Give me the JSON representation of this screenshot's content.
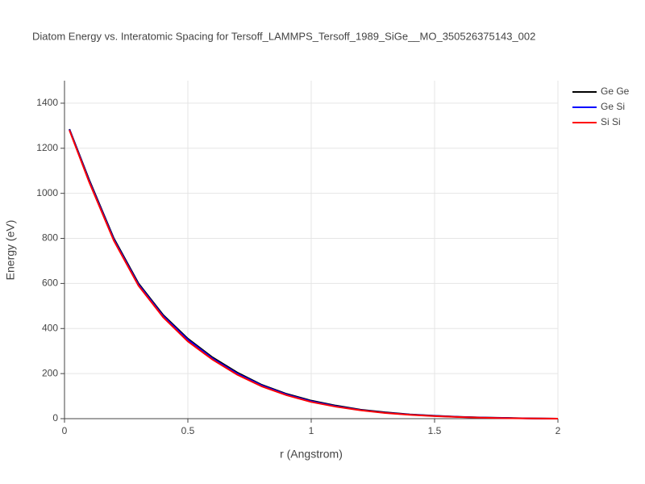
{
  "chart_data": {
    "type": "line",
    "title": "Diatom Energy vs. Interatomic Spacing for Tersoff_LAMMPS_Tersoff_1989_SiGe__MO_350526375143_002",
    "x_label": "r (Angstrom)",
    "y_label": "Energy (eV)",
    "x": [
      0.02,
      0.1,
      0.2,
      0.3,
      0.4,
      0.5,
      0.6,
      0.7,
      0.8,
      0.9,
      1.0,
      1.1,
      1.2,
      1.3,
      1.4,
      1.5,
      1.6,
      1.7,
      1.8,
      1.9,
      2.0
    ],
    "series": [
      {
        "name": "Ge Ge",
        "color": "#000000",
        "values": [
          1285,
          1060,
          800,
          600,
          460,
          355,
          272,
          205,
          150,
          110,
          80,
          58,
          40,
          28,
          19,
          13,
          8,
          5,
          3,
          1,
          0
        ]
      },
      {
        "name": "Ge Si",
        "color": "#0000ff",
        "values": [
          1283,
          1055,
          795,
          595,
          455,
          350,
          267,
          200,
          147,
          107,
          77,
          55,
          38,
          26,
          18,
          12,
          7.5,
          4.5,
          2.5,
          1,
          0
        ]
      },
      {
        "name": "Si Si",
        "color": "#ff0000",
        "values": [
          1280,
          1050,
          790,
          590,
          450,
          343,
          262,
          195,
          143,
          104,
          74,
          53,
          37,
          25,
          17,
          11,
          7,
          4,
          2,
          1,
          0
        ]
      }
    ],
    "xlim": [
      0,
      2
    ],
    "ylim": [
      0,
      1500
    ],
    "xticks": [
      0,
      0.5,
      1,
      1.5,
      2
    ],
    "yticks": [
      0,
      200,
      400,
      600,
      800,
      1000,
      1200,
      1400
    ],
    "grid": true,
    "legend": "top-right"
  }
}
